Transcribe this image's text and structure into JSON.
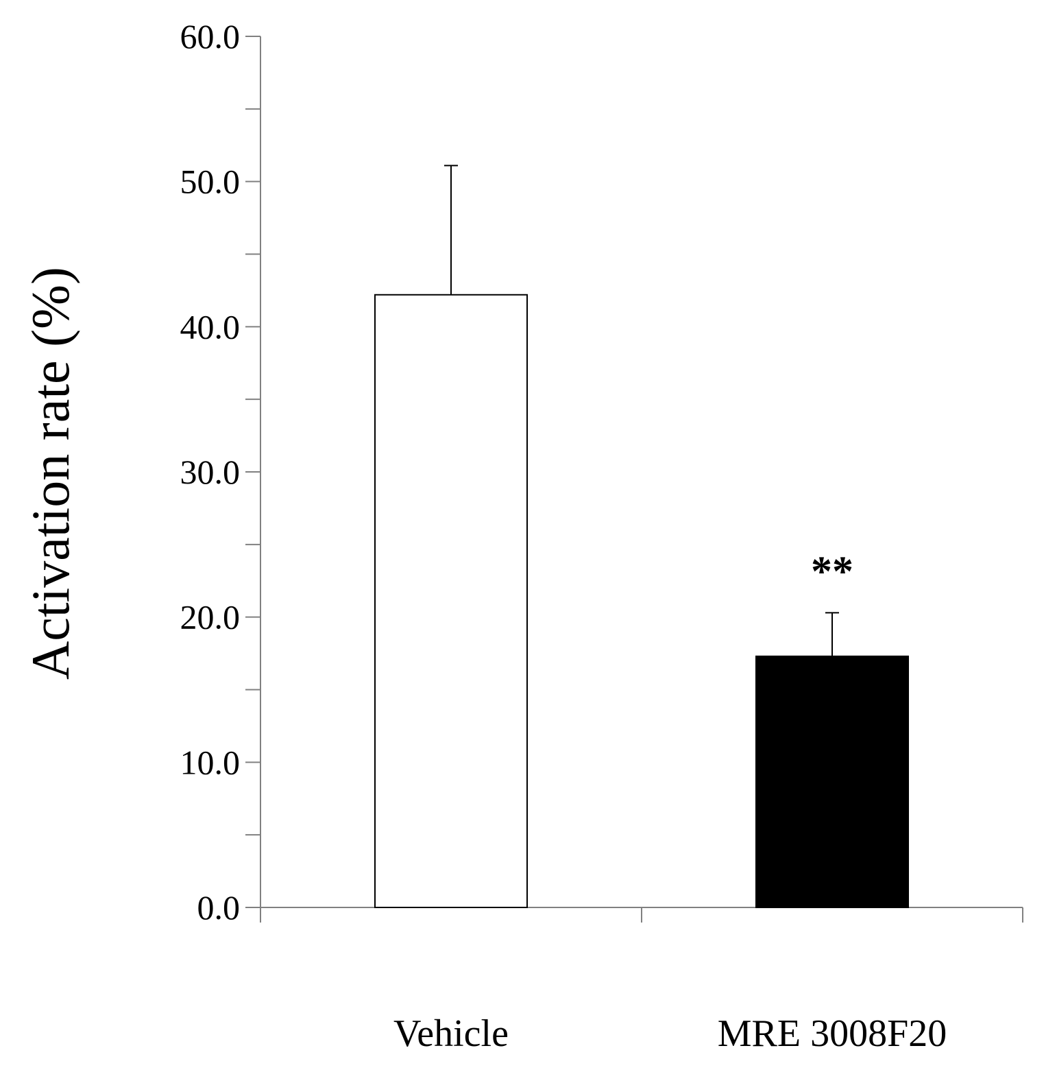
{
  "chart_data": {
    "type": "bar",
    "title": "",
    "xlabel": "",
    "ylabel": "Activation rate (%)",
    "ylim": [
      0,
      60
    ],
    "yticks": [
      0,
      10,
      20,
      30,
      40,
      50,
      60
    ],
    "ytick_labels": [
      "0.0",
      "10.0",
      "20.0",
      "30.0",
      "40.0",
      "50.0",
      "60.0"
    ],
    "minor_step": 5,
    "grid": false,
    "legend": "none",
    "categories": [
      "Vehicle",
      "MRE 3008F20"
    ],
    "values": [
      42.2,
      17.3
    ],
    "error_upper": [
      51.1,
      20.3
    ],
    "bar_colors": [
      "#ffffff",
      "#000000"
    ],
    "bar_edge_color": "#000000",
    "annotations": [
      {
        "category": "MRE 3008F20",
        "text": "**"
      }
    ]
  }
}
